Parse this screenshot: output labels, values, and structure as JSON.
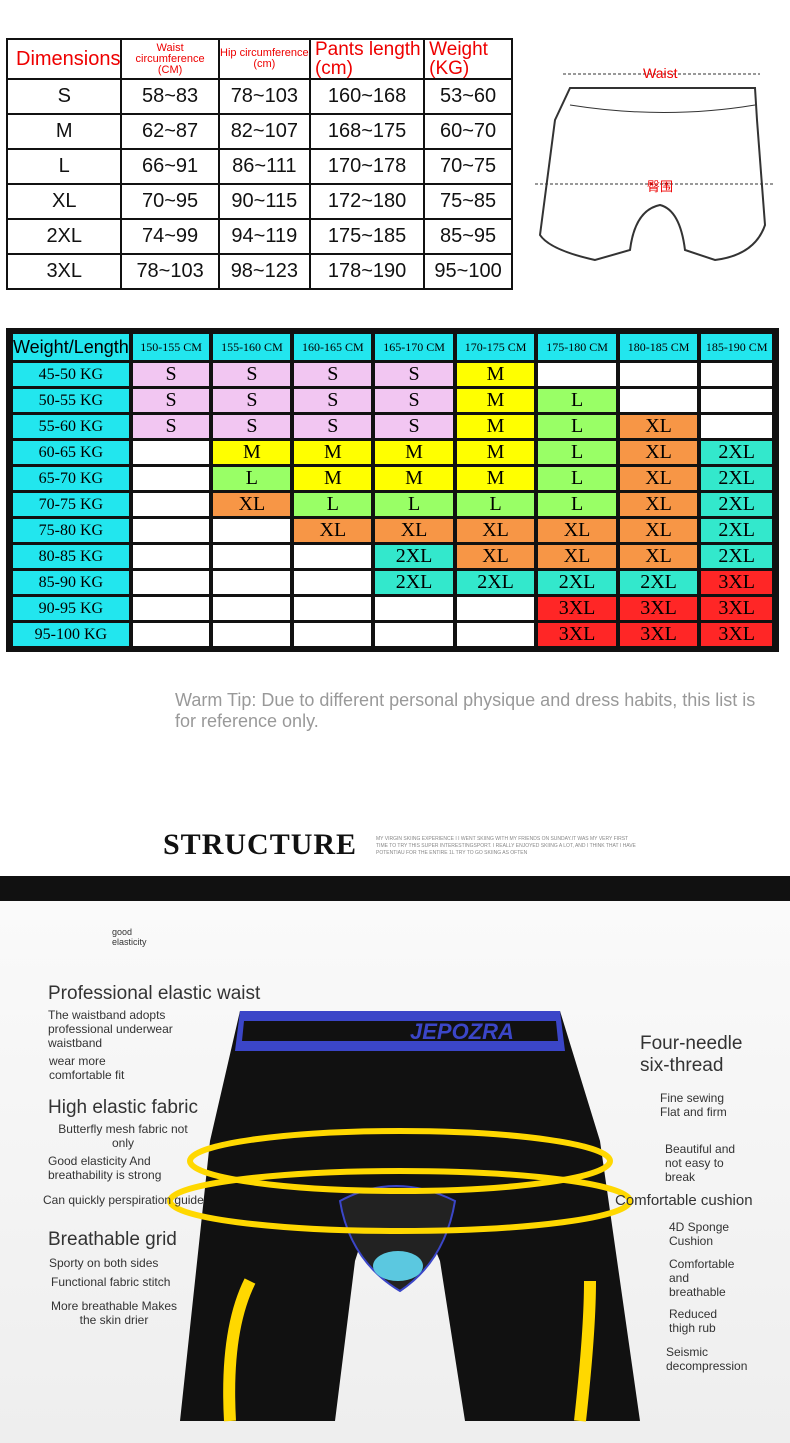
{
  "size_table": {
    "headers": [
      "Dimensions",
      "Waist circumference (CM)",
      "Hip circumference (cm)",
      "Pants length (cm)",
      "Weight (KG)"
    ],
    "rows": [
      [
        "S",
        "58~83",
        "78~103",
        "160~168",
        "53~60"
      ],
      [
        "M",
        "62~87",
        "82~107",
        "168~175",
        "60~70"
      ],
      [
        "L",
        "66~91",
        "86~111",
        "170~178",
        "70~75"
      ],
      [
        "XL",
        "70~95",
        "90~115",
        "172~180",
        "75~85"
      ],
      [
        "2XL",
        "74~99",
        "94~119",
        "175~185",
        "85~95"
      ],
      [
        "3XL",
        "78~103",
        "98~123",
        "178~190",
        "95~100"
      ]
    ]
  },
  "diagram": {
    "waist_label": "Waist",
    "hip_label": "臀围"
  },
  "chart_table": {
    "corner": "Weight/Length",
    "columns": [
      "150-155 CM",
      "155-160 CM",
      "160-165 CM",
      "165-170 CM",
      "170-175 CM",
      "175-180 CM",
      "180-185 CM",
      "185-190 CM"
    ],
    "rows": [
      {
        "w": "45-50 KG",
        "s": [
          "S",
          "S",
          "S",
          "S",
          "M",
          "",
          "",
          ""
        ]
      },
      {
        "w": "50-55 KG",
        "s": [
          "S",
          "S",
          "S",
          "S",
          "M",
          "L",
          "",
          ""
        ]
      },
      {
        "w": "55-60 KG",
        "s": [
          "S",
          "S",
          "S",
          "S",
          "M",
          "L",
          "XL",
          ""
        ]
      },
      {
        "w": "60-65 KG",
        "s": [
          "",
          "M",
          "M",
          "M",
          "M",
          "L",
          "XL",
          "2XL"
        ]
      },
      {
        "w": "65-70 KG",
        "s": [
          "",
          "L",
          "M",
          "M",
          "M",
          "L",
          "XL",
          "2XL"
        ]
      },
      {
        "w": "70-75 KG",
        "s": [
          "",
          "XL",
          "L",
          "L",
          "L",
          "L",
          "XL",
          "2XL"
        ]
      },
      {
        "w": "75-80 KG",
        "s": [
          "",
          "",
          "XL",
          "XL",
          "XL",
          "XL",
          "XL",
          "2XL"
        ]
      },
      {
        "w": "80-85 KG",
        "s": [
          "",
          "",
          "",
          "2XL",
          "XL",
          "XL",
          "XL",
          "2XL"
        ]
      },
      {
        "w": "85-90 KG",
        "s": [
          "",
          "",
          "",
          "2XL",
          "2XL",
          "2XL",
          "2XL",
          "3XL"
        ]
      },
      {
        "w": "90-95 KG",
        "s": [
          "",
          "",
          "",
          "",
          "",
          "3XL",
          "3XL",
          "3XL"
        ]
      },
      {
        "w": "95-100 KG",
        "s": [
          "",
          "",
          "",
          "",
          "",
          "3XL",
          "3XL",
          "3XL"
        ]
      }
    ],
    "colors": {
      "S": "#f2c6f2",
      "M": "#ffff00",
      "L": "#99ff66",
      "XL": "#f79646",
      "2XL": "#33e8cc",
      "3XL": "#ff2626",
      "header": "#22e6ee"
    }
  },
  "tip": "Warm Tip: Due to different personal physique and dress habits, this list is for reference only.",
  "structure": {
    "title": "STRUCTURE",
    "desc": "MY VIRGIN SKIING EXPERIENCE I I WENT SKIING WITH MY FRIENDS ON SUNDAY.IT WAS MY VERY FIRST TIME TO TRY THIS SUPER INTERESTINGSPORT. I REALLY ENJOYED SKIING A LOT, AND I THINK THAT I HAVE POTENTIAU FOR THE ENTIRE 1L TRY TO GO SKIING AS OFTEN"
  },
  "features": {
    "good": "good elasticity",
    "waist_title": "Professional elastic waist",
    "waist_1": "The waistband adopts professional underwear waistband",
    "waist_2": "wear more comfortable fit",
    "fabric_title": "High elastic fabric",
    "fabric_1": "Butterfly mesh fabric not only",
    "fabric_2": "Good elasticity And breathability is strong",
    "fabric_3": "Can quickly perspiration guide",
    "grid_title": "Breathable grid",
    "grid_1": "Sporty on both sides",
    "grid_2": "Functional fabric stitch",
    "grid_3": "More breathable Makes the skin drier",
    "needle_title": "Four-needle six-thread",
    "needle_1": "Fine sewing Flat and firm",
    "needle_2": "Beautiful and not easy to break",
    "cushion_title": "Comfortable cushion",
    "cushion_1": "4D Sponge Cushion",
    "cushion_2": "Comfortable and breathable",
    "cushion_3": "Reduced thigh rub",
    "cushion_4": "Seismic decompression",
    "brand": "JEPOZRA"
  }
}
